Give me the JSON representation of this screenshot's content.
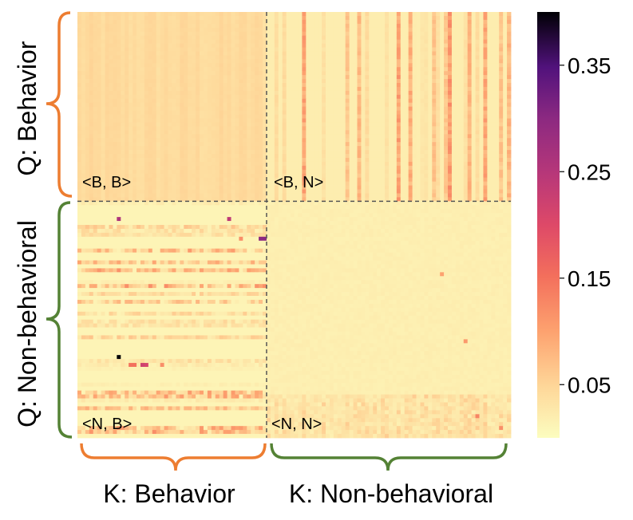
{
  "chart_data": {
    "type": "heatmap",
    "title": "",
    "colormap": "magma_r",
    "colorbar": {
      "vmin": 0.0,
      "vmax": 0.4,
      "ticks": [
        0.05,
        0.15,
        0.25,
        0.35
      ],
      "tick_labels": [
        "0.05",
        "0.15",
        "0.25",
        "0.35"
      ]
    },
    "xlabel_groups": [
      "K: Behavior",
      "K: Non-behavioral"
    ],
    "ylabel_groups": [
      "Q: Behavior",
      "Q: Non-behavioral"
    ],
    "quadrants": [
      {
        "label": "<B, B>",
        "mean_value": 0.04
      },
      {
        "label": "<B, N>",
        "mean_value": 0.05
      },
      {
        "label": "<N, B>",
        "mean_value": 0.03
      },
      {
        "label": "<N, N>",
        "mean_value": 0.015
      }
    ],
    "grid_cols": 110,
    "grid_rows": 108,
    "split_col": 48,
    "split_row": 48,
    "hotspots": [
      {
        "row": 52,
        "col": 10,
        "value": 0.26
      },
      {
        "row": 52,
        "col": 38,
        "value": 0.24
      },
      {
        "row": 57,
        "col": 41,
        "value": 0.12
      },
      {
        "row": 57,
        "col": 46,
        "value": 0.3
      },
      {
        "row": 57,
        "col": 47,
        "value": 0.3
      },
      {
        "row": 66,
        "col": 92,
        "value": 0.1
      },
      {
        "row": 83,
        "col": 98,
        "value": 0.11
      },
      {
        "row": 87,
        "col": 10,
        "value": 0.4
      },
      {
        "row": 89,
        "col": 16,
        "value": 0.22
      },
      {
        "row": 89,
        "col": 17,
        "value": 0.21
      },
      {
        "row": 89,
        "col": 13,
        "value": 0.15
      },
      {
        "row": 89,
        "col": 14,
        "value": 0.15
      },
      {
        "row": 89,
        "col": 21,
        "value": 0.12
      },
      {
        "row": 102,
        "col": 101,
        "value": 0.13
      },
      {
        "row": 105,
        "col": 107,
        "value": 0.12
      }
    ]
  }
}
